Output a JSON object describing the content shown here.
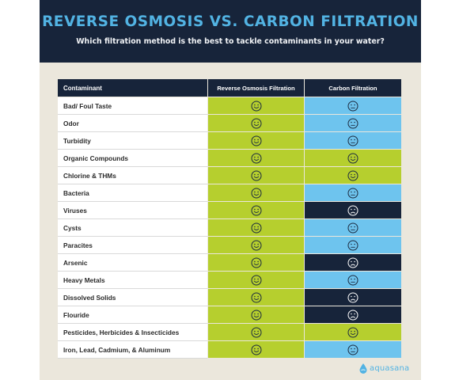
{
  "header": {
    "title": "REVERSE OSMOSIS VS. CARBON FILTRATION",
    "subtitle": "Which filtration method is the best to tackle contaminants in your water?"
  },
  "table": {
    "columns": [
      "Contaminant",
      "Reverse Osmosis Filtration",
      "Carbon Filtration"
    ],
    "rows": [
      {
        "name": "Bad/ Foul Taste",
        "ro": "happy",
        "carbon": "neutral"
      },
      {
        "name": "Odor",
        "ro": "happy",
        "carbon": "neutral"
      },
      {
        "name": "Turbidity",
        "ro": "happy",
        "carbon": "neutral"
      },
      {
        "name": "Organic Compounds",
        "ro": "happy",
        "carbon": "happy"
      },
      {
        "name": "Chlorine & THMs",
        "ro": "happy",
        "carbon": "happy"
      },
      {
        "name": "Bacteria",
        "ro": "happy",
        "carbon": "neutral"
      },
      {
        "name": "Viruses",
        "ro": "happy",
        "carbon": "sad"
      },
      {
        "name": "Cysts",
        "ro": "happy",
        "carbon": "neutral"
      },
      {
        "name": "Paracites",
        "ro": "happy",
        "carbon": "neutral"
      },
      {
        "name": "Arsenic",
        "ro": "happy",
        "carbon": "sad"
      },
      {
        "name": "Heavy Metals",
        "ro": "happy",
        "carbon": "neutral"
      },
      {
        "name": "Dissolved Solids",
        "ro": "happy",
        "carbon": "sad"
      },
      {
        "name": "Flouride",
        "ro": "happy",
        "carbon": "sad"
      },
      {
        "name": "Pesticides, Herbicides & Insecticides",
        "ro": "happy",
        "carbon": "happy"
      },
      {
        "name": "Iron, Lead, Cadmium, & Aluminum",
        "ro": "happy",
        "carbon": "neutral"
      }
    ]
  },
  "rating_styles": {
    "happy": {
      "icon": "smiley-face-icon",
      "background": "#b6cf2e"
    },
    "neutral": {
      "icon": "neutral-face-icon",
      "background": "#6ec4ee"
    },
    "sad": {
      "icon": "sad-face-icon",
      "background": "#17243a"
    }
  },
  "colors": {
    "navy": "#17243a",
    "accent_blue": "#52b3e3",
    "lime": "#b6cf2e",
    "light_blue": "#6ec4ee"
  },
  "brand": {
    "name": "aquasana",
    "icon": "water-drop-icon"
  }
}
